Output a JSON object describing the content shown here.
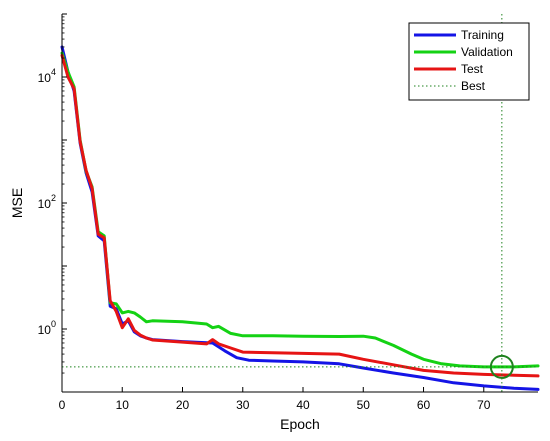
{
  "chart_data": {
    "type": "line",
    "title": "",
    "xlabel": "Epoch",
    "ylabel": "MSE",
    "x_scale": "linear",
    "y_scale": "log",
    "xlim": [
      0,
      79
    ],
    "ylim": [
      0.1,
      100000
    ],
    "x_ticks": [
      0,
      10,
      20,
      30,
      40,
      50,
      60,
      70
    ],
    "y_ticks": [
      {
        "value": 1,
        "base": "10",
        "exp": "0"
      },
      {
        "value": 100,
        "base": "10",
        "exp": "2"
      },
      {
        "value": 10000,
        "base": "10",
        "exp": "4"
      }
    ],
    "grid": false,
    "legend_position": "top-right",
    "series": [
      {
        "name": "Training",
        "color": "#1414e6",
        "style": "solid",
        "points": [
          [
            0,
            30000
          ],
          [
            1,
            12000
          ],
          [
            2,
            6000
          ],
          [
            3,
            900
          ],
          [
            4,
            300
          ],
          [
            5,
            150
          ],
          [
            6,
            30
          ],
          [
            7,
            25
          ],
          [
            8,
            2.3
          ],
          [
            9,
            2.1
          ],
          [
            10,
            1.2
          ],
          [
            11,
            1.35
          ],
          [
            12,
            0.9
          ],
          [
            13,
            0.78
          ],
          [
            14,
            0.72
          ],
          [
            15,
            0.68
          ],
          [
            20,
            0.63
          ],
          [
            25,
            0.6
          ],
          [
            27,
            0.45
          ],
          [
            29,
            0.35
          ],
          [
            31,
            0.32
          ],
          [
            35,
            0.31
          ],
          [
            40,
            0.3
          ],
          [
            46,
            0.28
          ],
          [
            50,
            0.24
          ],
          [
            55,
            0.2
          ],
          [
            60,
            0.17
          ],
          [
            65,
            0.14
          ],
          [
            70,
            0.125
          ],
          [
            75,
            0.115
          ],
          [
            79,
            0.11
          ]
        ]
      },
      {
        "name": "Validation",
        "color": "#14d214",
        "style": "solid",
        "points": [
          [
            0,
            24000
          ],
          [
            1,
            12000
          ],
          [
            2,
            7000
          ],
          [
            3,
            1000
          ],
          [
            4,
            320
          ],
          [
            5,
            180
          ],
          [
            6,
            35
          ],
          [
            7,
            30
          ],
          [
            8,
            2.6
          ],
          [
            9,
            2.5
          ],
          [
            10,
            1.8
          ],
          [
            11,
            1.9
          ],
          [
            12,
            1.8
          ],
          [
            13,
            1.55
          ],
          [
            14,
            1.3
          ],
          [
            15,
            1.35
          ],
          [
            20,
            1.3
          ],
          [
            24,
            1.2
          ],
          [
            25,
            1.05
          ],
          [
            26,
            1.1
          ],
          [
            28,
            0.85
          ],
          [
            30,
            0.78
          ],
          [
            35,
            0.78
          ],
          [
            40,
            0.77
          ],
          [
            46,
            0.76
          ],
          [
            50,
            0.77
          ],
          [
            52,
            0.72
          ],
          [
            55,
            0.55
          ],
          [
            58,
            0.4
          ],
          [
            60,
            0.33
          ],
          [
            63,
            0.28
          ],
          [
            66,
            0.26
          ],
          [
            70,
            0.25
          ],
          [
            73,
            0.25
          ],
          [
            75,
            0.25
          ],
          [
            79,
            0.26
          ]
        ]
      },
      {
        "name": "Test",
        "color": "#e61414",
        "style": "solid",
        "points": [
          [
            0,
            22000
          ],
          [
            1,
            10000
          ],
          [
            2,
            6500
          ],
          [
            3,
            950
          ],
          [
            4,
            330
          ],
          [
            5,
            170
          ],
          [
            6,
            32
          ],
          [
            7,
            28
          ],
          [
            8,
            2.8
          ],
          [
            9,
            1.9
          ],
          [
            10,
            1.05
          ],
          [
            11,
            1.45
          ],
          [
            12,
            0.95
          ],
          [
            13,
            0.8
          ],
          [
            14,
            0.72
          ],
          [
            15,
            0.67
          ],
          [
            20,
            0.62
          ],
          [
            24,
            0.58
          ],
          [
            25,
            0.68
          ],
          [
            26,
            0.58
          ],
          [
            28,
            0.5
          ],
          [
            30,
            0.43
          ],
          [
            35,
            0.42
          ],
          [
            40,
            0.41
          ],
          [
            46,
            0.4
          ],
          [
            50,
            0.33
          ],
          [
            55,
            0.27
          ],
          [
            60,
            0.22
          ],
          [
            65,
            0.2
          ],
          [
            70,
            0.19
          ],
          [
            75,
            0.185
          ],
          [
            79,
            0.18
          ]
        ]
      }
    ],
    "best_marker": {
      "name": "Best",
      "color": "#1e821e",
      "style": "dotted",
      "x": 73,
      "y": 0.25
    }
  }
}
